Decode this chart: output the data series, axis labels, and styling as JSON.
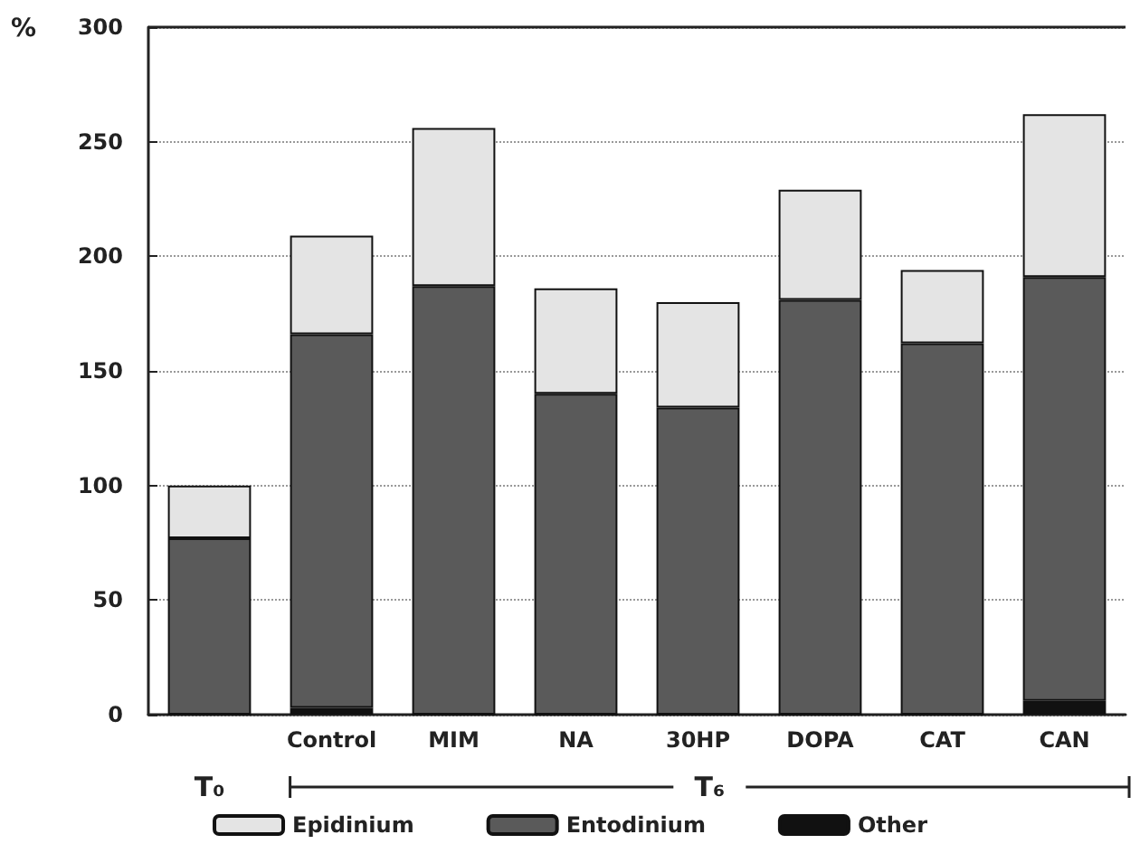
{
  "chart_data": {
    "type": "bar",
    "stacked": true,
    "ylabel": "%",
    "categories": [
      null,
      "Control",
      "MIM",
      "NA",
      "30HP",
      "DOPA",
      "CAT",
      "CAN"
    ],
    "series": [
      {
        "name": "Other",
        "color": "#111111",
        "values": [
          0,
          3,
          0,
          0,
          0,
          0,
          0,
          6
        ]
      },
      {
        "name": "Entodinium",
        "color": "#5a5a5a",
        "values": [
          77,
          163,
          187,
          140,
          134,
          181,
          162,
          185
        ]
      },
      {
        "name": "Epidinium",
        "color": "#e4e4e4",
        "values": [
          23,
          43,
          69,
          46,
          46,
          48,
          32,
          71
        ]
      }
    ],
    "ylim": [
      0,
      300
    ],
    "yticks": [
      0,
      50,
      100,
      150,
      200,
      250,
      300
    ],
    "grid": "y",
    "legend": "bottom",
    "annotations": [
      "T₀",
      "T₆"
    ]
  }
}
